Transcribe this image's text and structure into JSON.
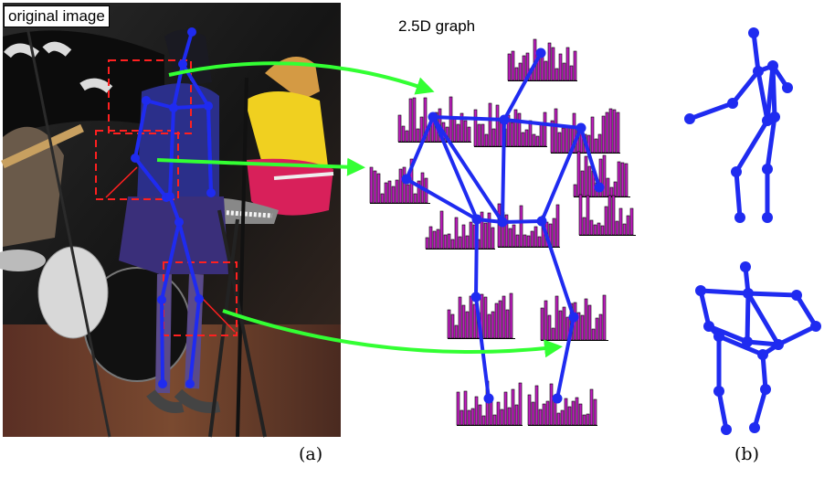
{
  "photo_label": "original image",
  "graph_title": "2.5D graph",
  "caption_a": "(a)",
  "caption_b": "(b)",
  "colors": {
    "skeleton": "#1f2bf0",
    "arrow": "#33ff33",
    "bbox": "#ff2020",
    "histogram": "#c020c0"
  }
}
